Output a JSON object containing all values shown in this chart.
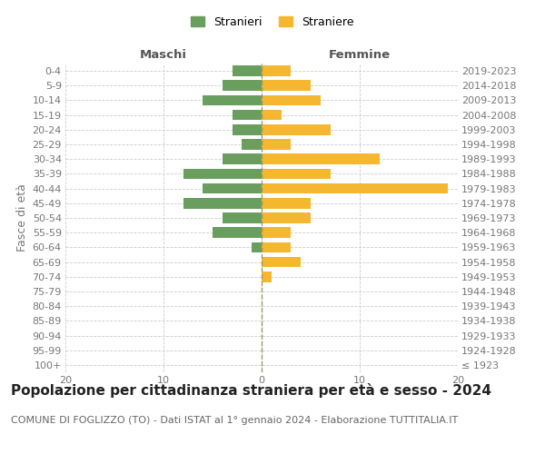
{
  "age_groups": [
    "100+",
    "95-99",
    "90-94",
    "85-89",
    "80-84",
    "75-79",
    "70-74",
    "65-69",
    "60-64",
    "55-59",
    "50-54",
    "45-49",
    "40-44",
    "35-39",
    "30-34",
    "25-29",
    "20-24",
    "15-19",
    "10-14",
    "5-9",
    "0-4"
  ],
  "birth_years": [
    "≤ 1923",
    "1924-1928",
    "1929-1933",
    "1934-1938",
    "1939-1943",
    "1944-1948",
    "1949-1953",
    "1954-1958",
    "1959-1963",
    "1964-1968",
    "1969-1973",
    "1974-1978",
    "1979-1983",
    "1984-1988",
    "1989-1993",
    "1994-1998",
    "1999-2003",
    "2004-2008",
    "2009-2013",
    "2014-2018",
    "2019-2023"
  ],
  "males": [
    0,
    0,
    0,
    0,
    0,
    0,
    0,
    0,
    1,
    5,
    4,
    8,
    6,
    8,
    4,
    2,
    3,
    3,
    6,
    4,
    3
  ],
  "females": [
    0,
    0,
    0,
    0,
    0,
    0,
    1,
    4,
    3,
    3,
    5,
    5,
    19,
    7,
    12,
    3,
    7,
    2,
    6,
    5,
    3
  ],
  "male_color": "#6a9e5e",
  "female_color": "#f5b730",
  "grid_color": "#cccccc",
  "center_line_color": "#999966",
  "title": "Popolazione per cittadinanza straniera per età e sesso - 2024",
  "subtitle": "COMUNE DI FOGLIZZO (TO) - Dati ISTAT al 1° gennaio 2024 - Elaborazione TUTTITALIA.IT",
  "left_header": "Maschi",
  "right_header": "Femmine",
  "left_ylabel": "Fasce di età",
  "legend_stranieri": "Stranieri",
  "legend_straniere": "Straniere",
  "xlim": 20,
  "tick_fontsize": 8,
  "label_fontsize": 9,
  "title_fontsize": 11,
  "subtitle_fontsize": 8
}
